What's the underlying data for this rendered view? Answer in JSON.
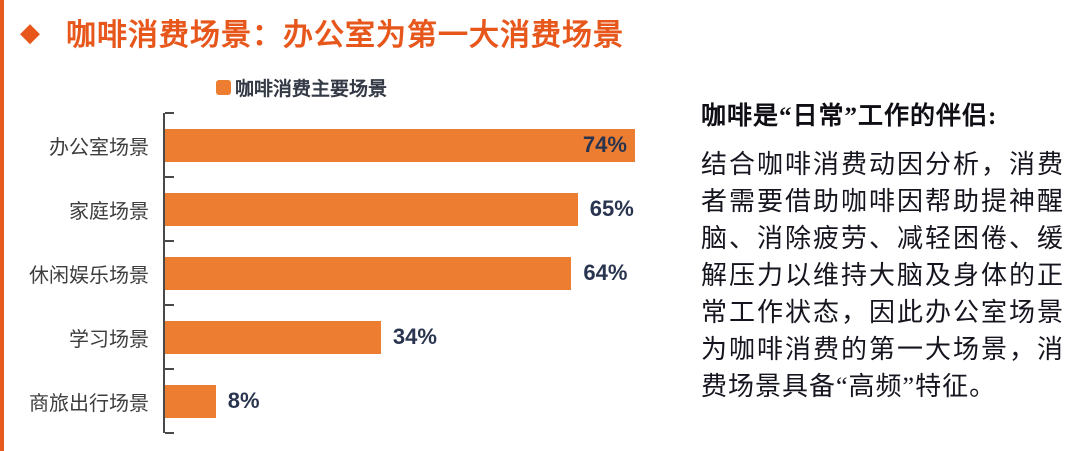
{
  "header": {
    "title": "咖啡消费场景：办公室为第一大消费场景"
  },
  "chart_data": {
    "type": "bar",
    "orientation": "horizontal",
    "title": "",
    "legend": "咖啡消费主要场景",
    "legend_position": "top",
    "categories": [
      "办公室场景",
      "家庭场景",
      "休闲娱乐场景",
      "学习场景",
      "商旅出行场景"
    ],
    "values": [
      74,
      65,
      64,
      34,
      8
    ],
    "value_labels": [
      "74%",
      "65%",
      "64%",
      "34%",
      "8%"
    ],
    "xlabel": "",
    "ylabel": "",
    "xlim": [
      0,
      80
    ],
    "grid": false,
    "bar_color": "#ed7d31",
    "value_label_color": "#29344f",
    "axis_color": "#4a4a4a"
  },
  "aside": {
    "heading": "咖啡是“日常”工作的伴侣:",
    "body": "结合咖啡消费动因分析，消费者需要借助咖啡因帮助提神醒脑、消除疲劳、减轻困倦、缓解压力以维持大脑及身体的正常工作状态，因此办公室场景为咖啡消费的第一大场景，消费场景具备“高频”特征。"
  },
  "colors": {
    "accent_orange": "#e7571c",
    "bar_orange": "#ed7d31",
    "value_navy": "#29344f",
    "label_gray": "#3d3d3d"
  }
}
